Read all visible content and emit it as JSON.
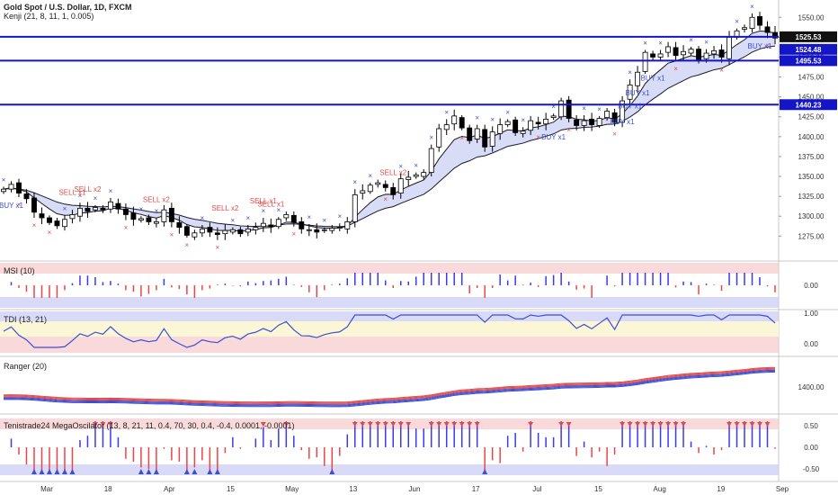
{
  "header": {
    "title": "Gold Spot / U.S. Dollar, 1D, FXCM",
    "subtitle": "Kenji (21, 8, 11, 1, 0.005)"
  },
  "panes": {
    "msi_label": "MSI (10)",
    "tdi_label": "TDI (13, 21)",
    "ranger_label": "Ranger (20)",
    "osc_label": "Tenistrade24 MegaOscilator (13, 8, 21, 11, 0.4, 70, 30, 0.4, -0.4, 0.0001, -0.0001)"
  },
  "colors": {
    "up": "#ffffff",
    "down": "#000000",
    "wick": "#000000",
    "hline": "#1515c8",
    "buy": "#3a4fd6",
    "sell": "#e24a4a",
    "band_fill": "#c9cdf2",
    "band_fill_green": "#d6f0d6",
    "ob_zone": "#f7c9c9",
    "os_zone": "#c9cbf3"
  },
  "chart_data": [
    {
      "type": "candlestick",
      "title": "Gold Spot / U.S. Dollar, 1D, FXCM",
      "y_range": [
        1255,
        1565
      ],
      "y_ticks": [
        1275.0,
        1300.0,
        1325.0,
        1350.0,
        1375.0,
        1400.0,
        1425.0,
        1450.0,
        1475.0,
        1500.0,
        1525.0,
        1550.0
      ],
      "x_ticks": [
        "Mar",
        "18",
        "Apr",
        "15",
        "May",
        "13",
        "Jun",
        "17",
        "Jul",
        "15",
        "Aug",
        "19",
        "Sep"
      ],
      "horizontal_lines": [
        {
          "price": 1525.53,
          "label": "1525.53"
        },
        {
          "price": 1495.53,
          "label": "1495.53"
        },
        {
          "price": 1440.23,
          "label": "1440.23"
        }
      ],
      "last_price": {
        "price": 1524.48,
        "label": "1524.48"
      },
      "signals": [
        {
          "text": "BUY x1",
          "kind": "buy"
        },
        {
          "text": "SELL x1",
          "kind": "sell"
        },
        {
          "text": "SELL x2",
          "kind": "sell"
        },
        {
          "text": "SELL x2",
          "kind": "sell"
        },
        {
          "text": "SELL x2",
          "kind": "sell"
        },
        {
          "text": "SELL x1",
          "kind": "sell"
        },
        {
          "text": "SELL x1",
          "kind": "sell"
        },
        {
          "text": "SELL x2",
          "kind": "sell"
        },
        {
          "text": "BUY x1",
          "kind": "buy"
        },
        {
          "text": "BUY x1",
          "kind": "buy"
        },
        {
          "text": "BUY x1",
          "kind": "buy"
        },
        {
          "text": "BUY x1",
          "kind": "buy"
        },
        {
          "text": "BUY x1",
          "kind": "buy"
        },
        {
          "text": "BUY x1",
          "kind": "buy"
        }
      ],
      "close_path": [
        1334,
        1340,
        1329,
        1322,
        1305,
        1298,
        1292,
        1288,
        1296,
        1302,
        1310,
        1306,
        1311,
        1308,
        1318,
        1309,
        1302,
        1296,
        1297,
        1293,
        1293,
        1308,
        1293,
        1286,
        1276,
        1279,
        1284,
        1280,
        1277,
        1282,
        1283,
        1278,
        1284,
        1286,
        1291,
        1287,
        1296,
        1302,
        1292,
        1284,
        1283,
        1280,
        1283,
        1285,
        1286,
        1293,
        1327,
        1332,
        1339,
        1342,
        1336,
        1327,
        1347,
        1349,
        1352,
        1355,
        1385,
        1410,
        1415,
        1426,
        1411,
        1395,
        1410,
        1387,
        1406,
        1415,
        1419,
        1405,
        1407,
        1420,
        1416,
        1422,
        1426,
        1445,
        1423,
        1414,
        1420,
        1415,
        1423,
        1432,
        1418,
        1445,
        1465,
        1481,
        1506,
        1500,
        1504,
        1513,
        1502,
        1507,
        1510,
        1496,
        1505,
        1508,
        1500,
        1525,
        1533,
        1537,
        1550,
        1540,
        1531,
        1524
      ]
    },
    {
      "type": "bar",
      "title": "MSI (10)",
      "y_ticks": [
        0.0
      ]
    },
    {
      "type": "line",
      "title": "TDI (13, 21)",
      "y_ticks": [
        1.0,
        0.0
      ]
    },
    {
      "type": "line",
      "title": "Ranger (20)",
      "y_ticks": [
        1400.0
      ]
    },
    {
      "type": "bar",
      "title": "Tenistrade24 MegaOscilator (13, 8, 21, 11, 0.4, 70, 30, 0.4, -0.4, 0.0001, -0.0001)",
      "y_ticks": [
        0.5,
        0.0,
        -0.5
      ]
    }
  ]
}
